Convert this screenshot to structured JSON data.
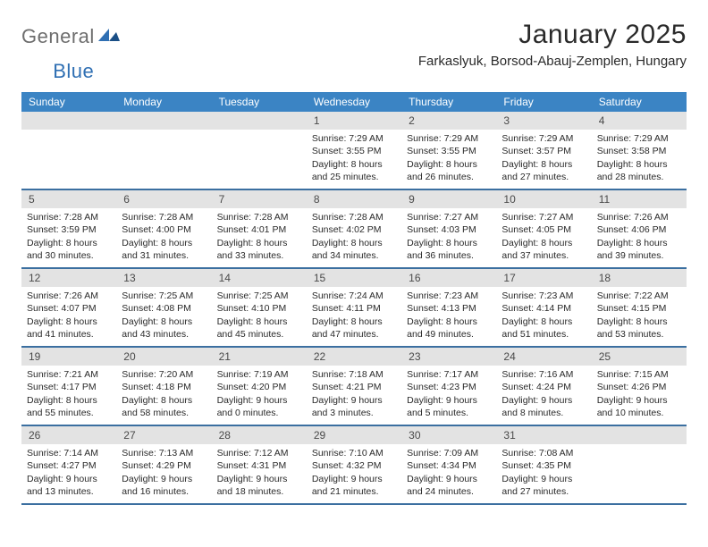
{
  "brand": {
    "part1": "General",
    "part2": "Blue"
  },
  "title": "January 2025",
  "location": "Farkaslyuk, Borsod-Abauj-Zemplen, Hungary",
  "colors": {
    "header_bg": "#3b84c4",
    "week_border": "#3b6fa0",
    "daynum_bg": "#e3e3e3",
    "logo_gray": "#6e6e6e",
    "logo_blue": "#2f6fb3"
  },
  "dow": [
    "Sunday",
    "Monday",
    "Tuesday",
    "Wednesday",
    "Thursday",
    "Friday",
    "Saturday"
  ],
  "weeks": [
    [
      {
        "n": "",
        "sunrise": "",
        "sunset": "",
        "dlh": "",
        "dlm": ""
      },
      {
        "n": "",
        "sunrise": "",
        "sunset": "",
        "dlh": "",
        "dlm": ""
      },
      {
        "n": "",
        "sunrise": "",
        "sunset": "",
        "dlh": "",
        "dlm": ""
      },
      {
        "n": "1",
        "sunrise": "7:29 AM",
        "sunset": "3:55 PM",
        "dlh": "8",
        "dlm": "25"
      },
      {
        "n": "2",
        "sunrise": "7:29 AM",
        "sunset": "3:55 PM",
        "dlh": "8",
        "dlm": "26"
      },
      {
        "n": "3",
        "sunrise": "7:29 AM",
        "sunset": "3:57 PM",
        "dlh": "8",
        "dlm": "27"
      },
      {
        "n": "4",
        "sunrise": "7:29 AM",
        "sunset": "3:58 PM",
        "dlh": "8",
        "dlm": "28"
      }
    ],
    [
      {
        "n": "5",
        "sunrise": "7:28 AM",
        "sunset": "3:59 PM",
        "dlh": "8",
        "dlm": "30"
      },
      {
        "n": "6",
        "sunrise": "7:28 AM",
        "sunset": "4:00 PM",
        "dlh": "8",
        "dlm": "31"
      },
      {
        "n": "7",
        "sunrise": "7:28 AM",
        "sunset": "4:01 PM",
        "dlh": "8",
        "dlm": "33"
      },
      {
        "n": "8",
        "sunrise": "7:28 AM",
        "sunset": "4:02 PM",
        "dlh": "8",
        "dlm": "34"
      },
      {
        "n": "9",
        "sunrise": "7:27 AM",
        "sunset": "4:03 PM",
        "dlh": "8",
        "dlm": "36"
      },
      {
        "n": "10",
        "sunrise": "7:27 AM",
        "sunset": "4:05 PM",
        "dlh": "8",
        "dlm": "37"
      },
      {
        "n": "11",
        "sunrise": "7:26 AM",
        "sunset": "4:06 PM",
        "dlh": "8",
        "dlm": "39"
      }
    ],
    [
      {
        "n": "12",
        "sunrise": "7:26 AM",
        "sunset": "4:07 PM",
        "dlh": "8",
        "dlm": "41"
      },
      {
        "n": "13",
        "sunrise": "7:25 AM",
        "sunset": "4:08 PM",
        "dlh": "8",
        "dlm": "43"
      },
      {
        "n": "14",
        "sunrise": "7:25 AM",
        "sunset": "4:10 PM",
        "dlh": "8",
        "dlm": "45"
      },
      {
        "n": "15",
        "sunrise": "7:24 AM",
        "sunset": "4:11 PM",
        "dlh": "8",
        "dlm": "47"
      },
      {
        "n": "16",
        "sunrise": "7:23 AM",
        "sunset": "4:13 PM",
        "dlh": "8",
        "dlm": "49"
      },
      {
        "n": "17",
        "sunrise": "7:23 AM",
        "sunset": "4:14 PM",
        "dlh": "8",
        "dlm": "51"
      },
      {
        "n": "18",
        "sunrise": "7:22 AM",
        "sunset": "4:15 PM",
        "dlh": "8",
        "dlm": "53"
      }
    ],
    [
      {
        "n": "19",
        "sunrise": "7:21 AM",
        "sunset": "4:17 PM",
        "dlh": "8",
        "dlm": "55"
      },
      {
        "n": "20",
        "sunrise": "7:20 AM",
        "sunset": "4:18 PM",
        "dlh": "8",
        "dlm": "58"
      },
      {
        "n": "21",
        "sunrise": "7:19 AM",
        "sunset": "4:20 PM",
        "dlh": "9",
        "dlm": "0"
      },
      {
        "n": "22",
        "sunrise": "7:18 AM",
        "sunset": "4:21 PM",
        "dlh": "9",
        "dlm": "3"
      },
      {
        "n": "23",
        "sunrise": "7:17 AM",
        "sunset": "4:23 PM",
        "dlh": "9",
        "dlm": "5"
      },
      {
        "n": "24",
        "sunrise": "7:16 AM",
        "sunset": "4:24 PM",
        "dlh": "9",
        "dlm": "8"
      },
      {
        "n": "25",
        "sunrise": "7:15 AM",
        "sunset": "4:26 PM",
        "dlh": "9",
        "dlm": "10"
      }
    ],
    [
      {
        "n": "26",
        "sunrise": "7:14 AM",
        "sunset": "4:27 PM",
        "dlh": "9",
        "dlm": "13"
      },
      {
        "n": "27",
        "sunrise": "7:13 AM",
        "sunset": "4:29 PM",
        "dlh": "9",
        "dlm": "16"
      },
      {
        "n": "28",
        "sunrise": "7:12 AM",
        "sunset": "4:31 PM",
        "dlh": "9",
        "dlm": "18"
      },
      {
        "n": "29",
        "sunrise": "7:10 AM",
        "sunset": "4:32 PM",
        "dlh": "9",
        "dlm": "21"
      },
      {
        "n": "30",
        "sunrise": "7:09 AM",
        "sunset": "4:34 PM",
        "dlh": "9",
        "dlm": "24"
      },
      {
        "n": "31",
        "sunrise": "7:08 AM",
        "sunset": "4:35 PM",
        "dlh": "9",
        "dlm": "27"
      },
      {
        "n": "",
        "sunrise": "",
        "sunset": "",
        "dlh": "",
        "dlm": ""
      }
    ]
  ],
  "labels": {
    "sunrise": "Sunrise:",
    "sunset": "Sunset:",
    "daylight_prefix": "Daylight:",
    "hours_word": "hours",
    "and_word": "and",
    "minutes_word": "minutes."
  }
}
